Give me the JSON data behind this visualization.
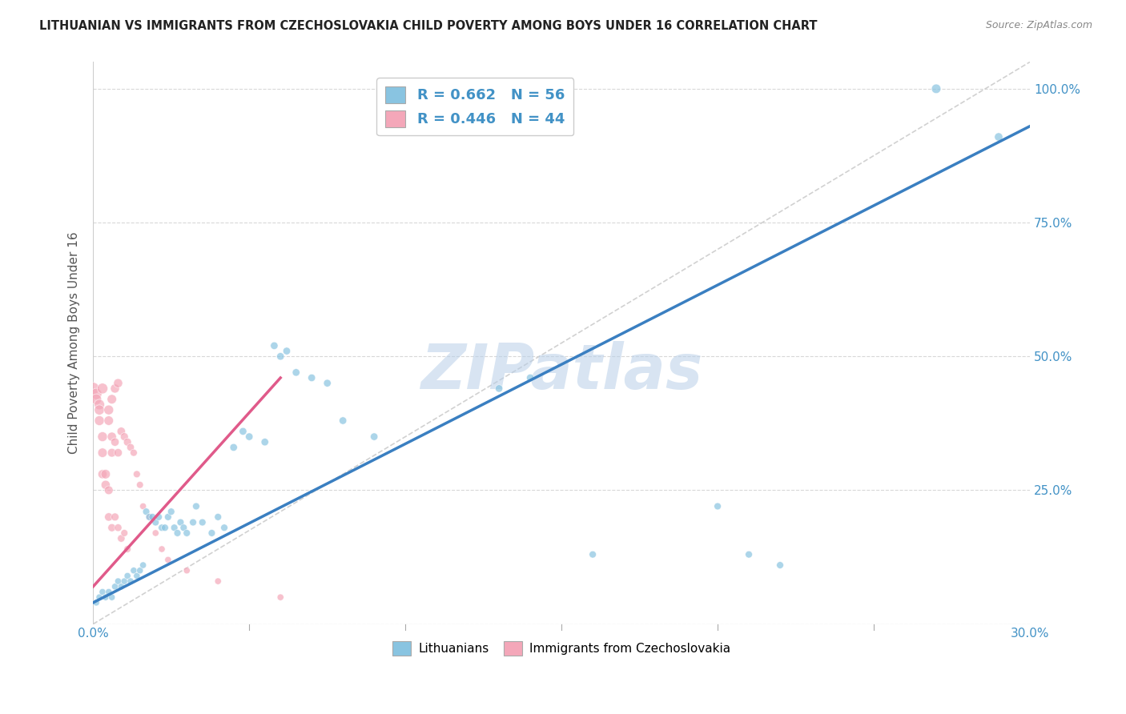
{
  "title": "LITHUANIAN VS IMMIGRANTS FROM CZECHOSLOVAKIA CHILD POVERTY AMONG BOYS UNDER 16 CORRELATION CHART",
  "source": "Source: ZipAtlas.com",
  "ylabel": "Child Poverty Among Boys Under 16",
  "xlim": [
    0.0,
    0.3
  ],
  "ylim": [
    0.0,
    1.05
  ],
  "x_ticks": [
    0.0,
    0.05,
    0.1,
    0.15,
    0.2,
    0.25,
    0.3
  ],
  "y_ticks": [
    0.0,
    0.25,
    0.5,
    0.75,
    1.0
  ],
  "y_tick_labels": [
    "",
    "25.0%",
    "50.0%",
    "75.0%",
    "100.0%"
  ],
  "watermark": "ZIPatlas",
  "R_blue": "0.662",
  "N_blue": "56",
  "R_pink": "0.446",
  "N_pink": "44",
  "color_blue": "#89c4e1",
  "color_pink": "#f4a7b9",
  "color_blue_text": "#4292c6",
  "color_pink_text": "#e05a8a",
  "trend_blue_color": "#3a7fc1",
  "trend_pink_color": "#e05a8a",
  "diag_color": "#cccccc",
  "background_color": "#ffffff",
  "grid_color": "#d8d8d8",
  "trend_blue_x0": 0.0,
  "trend_blue_y0": 0.04,
  "trend_blue_x1": 0.3,
  "trend_blue_y1": 0.93,
  "trend_pink_x0": 0.0,
  "trend_pink_y0": 0.07,
  "trend_pink_x1": 0.06,
  "trend_pink_y1": 0.46,
  "scatter_blue": [
    [
      0.001,
      0.04
    ],
    [
      0.002,
      0.05
    ],
    [
      0.003,
      0.06
    ],
    [
      0.004,
      0.05
    ],
    [
      0.005,
      0.06
    ],
    [
      0.006,
      0.05
    ],
    [
      0.007,
      0.07
    ],
    [
      0.008,
      0.08
    ],
    [
      0.009,
      0.07
    ],
    [
      0.01,
      0.08
    ],
    [
      0.011,
      0.09
    ],
    [
      0.012,
      0.08
    ],
    [
      0.013,
      0.1
    ],
    [
      0.014,
      0.09
    ],
    [
      0.015,
      0.1
    ],
    [
      0.016,
      0.11
    ],
    [
      0.017,
      0.21
    ],
    [
      0.018,
      0.2
    ],
    [
      0.019,
      0.2
    ],
    [
      0.02,
      0.19
    ],
    [
      0.021,
      0.2
    ],
    [
      0.022,
      0.18
    ],
    [
      0.023,
      0.18
    ],
    [
      0.024,
      0.2
    ],
    [
      0.025,
      0.21
    ],
    [
      0.026,
      0.18
    ],
    [
      0.027,
      0.17
    ],
    [
      0.028,
      0.19
    ],
    [
      0.029,
      0.18
    ],
    [
      0.03,
      0.17
    ],
    [
      0.032,
      0.19
    ],
    [
      0.033,
      0.22
    ],
    [
      0.035,
      0.19
    ],
    [
      0.038,
      0.17
    ],
    [
      0.04,
      0.2
    ],
    [
      0.042,
      0.18
    ],
    [
      0.045,
      0.33
    ],
    [
      0.048,
      0.36
    ],
    [
      0.05,
      0.35
    ],
    [
      0.055,
      0.34
    ],
    [
      0.058,
      0.52
    ],
    [
      0.06,
      0.5
    ],
    [
      0.062,
      0.51
    ],
    [
      0.065,
      0.47
    ],
    [
      0.07,
      0.46
    ],
    [
      0.075,
      0.45
    ],
    [
      0.08,
      0.38
    ],
    [
      0.09,
      0.35
    ],
    [
      0.13,
      0.44
    ],
    [
      0.14,
      0.46
    ],
    [
      0.16,
      0.13
    ],
    [
      0.2,
      0.22
    ],
    [
      0.21,
      0.13
    ],
    [
      0.22,
      0.11
    ],
    [
      0.27,
      1.0
    ],
    [
      0.29,
      0.91
    ]
  ],
  "scatter_pink": [
    [
      0.0,
      0.44
    ],
    [
      0.001,
      0.43
    ],
    [
      0.001,
      0.42
    ],
    [
      0.002,
      0.41
    ],
    [
      0.002,
      0.4
    ],
    [
      0.002,
      0.38
    ],
    [
      0.003,
      0.44
    ],
    [
      0.003,
      0.35
    ],
    [
      0.003,
      0.32
    ],
    [
      0.003,
      0.28
    ],
    [
      0.004,
      0.28
    ],
    [
      0.004,
      0.26
    ],
    [
      0.005,
      0.4
    ],
    [
      0.005,
      0.38
    ],
    [
      0.005,
      0.25
    ],
    [
      0.005,
      0.2
    ],
    [
      0.006,
      0.42
    ],
    [
      0.006,
      0.35
    ],
    [
      0.006,
      0.32
    ],
    [
      0.006,
      0.18
    ],
    [
      0.007,
      0.44
    ],
    [
      0.007,
      0.34
    ],
    [
      0.007,
      0.2
    ],
    [
      0.008,
      0.45
    ],
    [
      0.008,
      0.32
    ],
    [
      0.008,
      0.18
    ],
    [
      0.009,
      0.36
    ],
    [
      0.009,
      0.16
    ],
    [
      0.01,
      0.35
    ],
    [
      0.01,
      0.17
    ],
    [
      0.011,
      0.34
    ],
    [
      0.011,
      0.14
    ],
    [
      0.012,
      0.33
    ],
    [
      0.013,
      0.32
    ],
    [
      0.014,
      0.28
    ],
    [
      0.015,
      0.26
    ],
    [
      0.016,
      0.22
    ],
    [
      0.018,
      0.2
    ],
    [
      0.02,
      0.17
    ],
    [
      0.022,
      0.14
    ],
    [
      0.024,
      0.12
    ],
    [
      0.03,
      0.1
    ],
    [
      0.04,
      0.08
    ],
    [
      0.06,
      0.05
    ]
  ],
  "bubble_sizes_blue": [
    35,
    35,
    35,
    35,
    35,
    35,
    35,
    35,
    35,
    35,
    35,
    35,
    35,
    35,
    35,
    35,
    40,
    40,
    40,
    40,
    40,
    40,
    40,
    40,
    40,
    40,
    40,
    40,
    40,
    40,
    40,
    40,
    40,
    40,
    40,
    40,
    45,
    45,
    45,
    45,
    45,
    45,
    45,
    45,
    45,
    45,
    45,
    45,
    45,
    45,
    40,
    40,
    40,
    40,
    70,
    55
  ],
  "bubble_sizes_pink": [
    120,
    100,
    90,
    85,
    80,
    75,
    90,
    75,
    70,
    65,
    70,
    65,
    75,
    70,
    60,
    55,
    70,
    65,
    60,
    50,
    65,
    55,
    50,
    65,
    55,
    45,
    55,
    45,
    50,
    40,
    50,
    40,
    45,
    40,
    40,
    38,
    35,
    35,
    35,
    35,
    35,
    35,
    35,
    35
  ]
}
